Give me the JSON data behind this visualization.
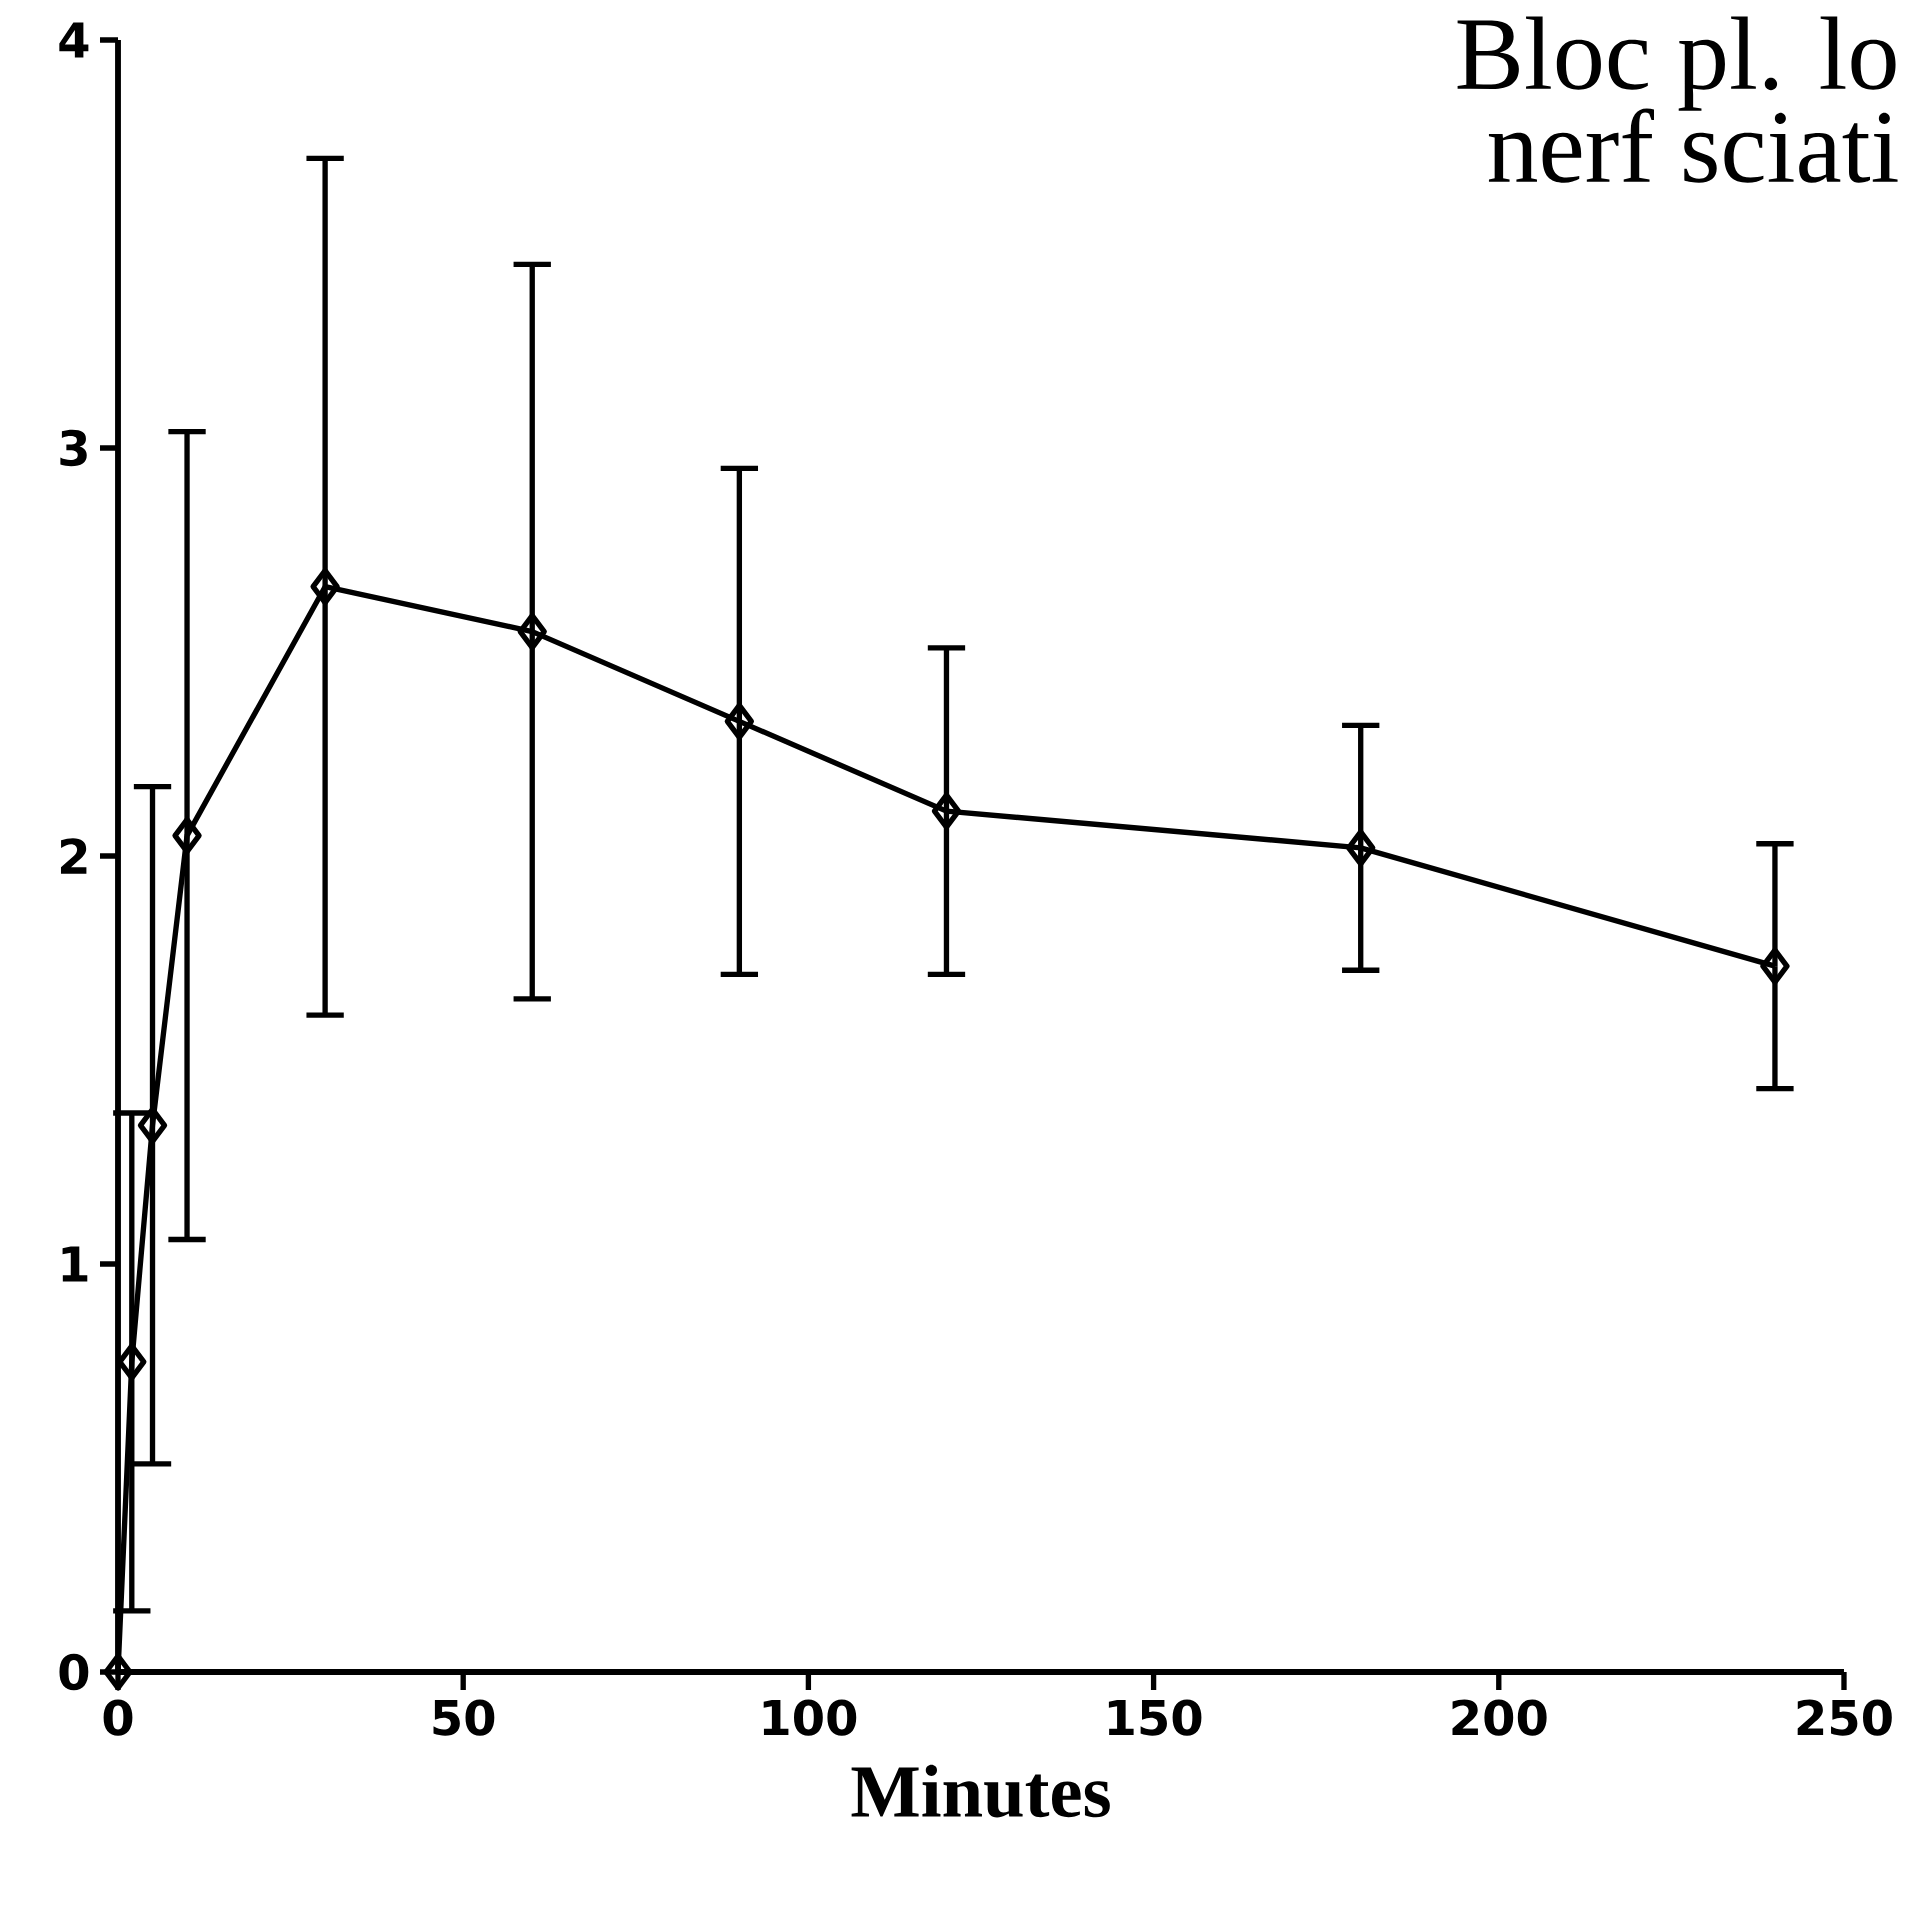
{
  "chart_data": {
    "type": "line",
    "xlabel": "Minutes",
    "annotations": [
      "Bloc pl. lo",
      "nerf sciati"
    ],
    "x": [
      0,
      2,
      5,
      10,
      30,
      60,
      90,
      120,
      180,
      240
    ],
    "series": [
      {
        "color": "#000000",
        "marker": "diamond",
        "line_style": "solid",
        "values": [
          0,
          0.76,
          1.34,
          2.05,
          2.66,
          2.55,
          2.33,
          2.11,
          2.02,
          1.73
        ],
        "errors": [
          null,
          0.61,
          0.83,
          0.99,
          1.05,
          0.9,
          0.62,
          0.4,
          0.3,
          0.3
        ]
      }
    ],
    "xlim": [
      0,
      250
    ],
    "ylim": [
      0,
      4
    ],
    "xticks": [
      0,
      50,
      100,
      150,
      200,
      250
    ],
    "yticks": [
      0,
      1,
      2,
      3,
      4
    ]
  }
}
